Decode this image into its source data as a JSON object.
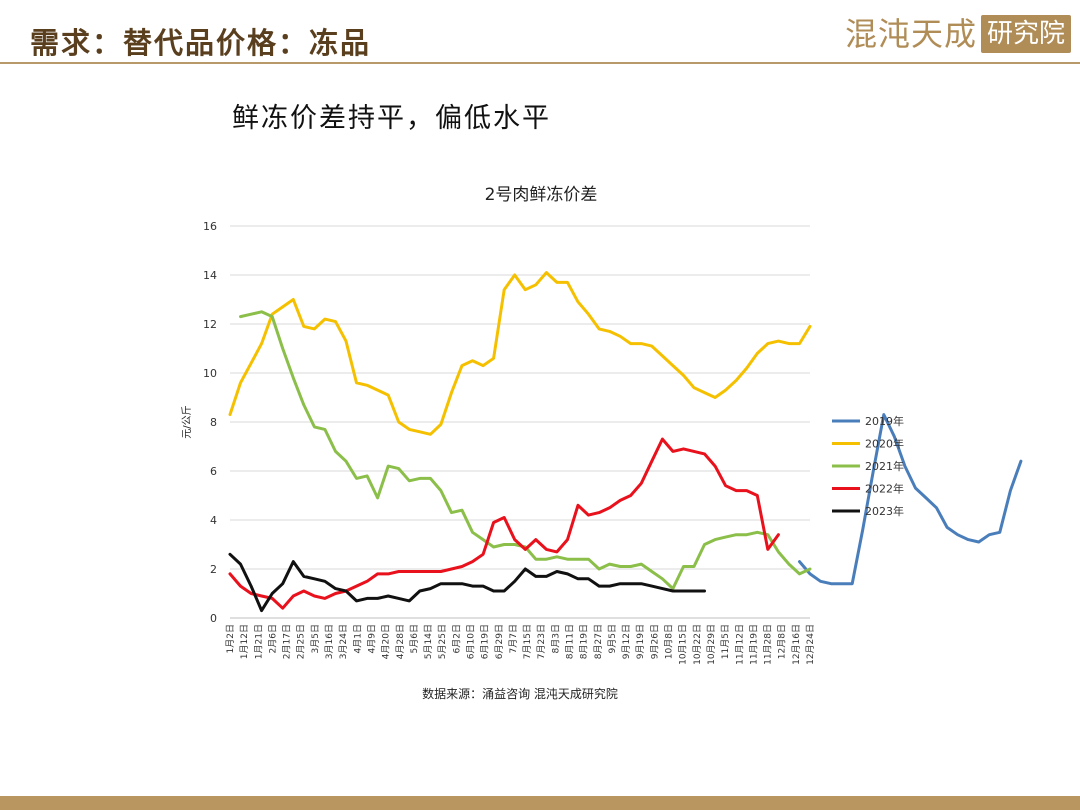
{
  "header": {
    "title": "需求：替代品价格：冻品",
    "logo_text": "混沌天成",
    "logo_box_text": "研究院"
  },
  "subtitle": "鲜冻价差持平，偏低水平",
  "colors": {
    "title": "#5a3f1e",
    "rule": "#b89a6a",
    "footer": "#b9955f",
    "s2019": "#4a7ebb",
    "s2020": "#f5c000",
    "s2021": "#8bbf4a",
    "s2022": "#e8111c",
    "s2023": "#111111"
  },
  "chart_data": {
    "type": "line",
    "title": "2号肉鲜冻价差",
    "ylabel": "元/公斤",
    "source": "数据来源：涌益咨询 混沌天成研究院",
    "ylim": [
      0,
      16
    ],
    "yticks": [
      0,
      2,
      4,
      6,
      8,
      10,
      12,
      14,
      16
    ],
    "grid": true,
    "legend_position": "right",
    "x_tick_labels": [
      "1月2日",
      "1月12日",
      "1月21日",
      "2月6日",
      "2月17日",
      "2月25日",
      "3月5日",
      "3月16日",
      "3月24日",
      "4月1日",
      "4月9日",
      "4月20日",
      "4月28日",
      "5月6日",
      "5月14日",
      "5月25日",
      "6月2日",
      "6月10日",
      "6月19日",
      "6月29日",
      "7月7日",
      "7月15日",
      "7月23日",
      "8月3日",
      "8月11日",
      "8月19日",
      "8月27日",
      "9月5日",
      "9月12日",
      "9月19日",
      "9月26日",
      "10月8日",
      "10月15日",
      "10月22日",
      "10月29日",
      "11月5日",
      "11月12日",
      "11月19日",
      "11月28日",
      "12月8日",
      "12月16日",
      "12月24日"
    ],
    "series": [
      {
        "name": "2019年",
        "color": "#4a7ebb",
        "start": 54,
        "values": [
          2.3,
          1.8,
          1.5,
          1.4,
          1.4,
          1.4,
          3.6,
          6.0,
          8.3,
          7.4,
          6.2,
          5.3,
          4.9,
          4.5,
          3.7,
          3.4,
          3.2,
          3.1,
          3.4,
          3.5,
          5.2,
          6.4
        ]
      },
      {
        "name": "2020年",
        "color": "#f5c000",
        "start": 0,
        "values": [
          8.3,
          9.6,
          10.4,
          11.2,
          12.4,
          12.7,
          13.0,
          11.9,
          11.8,
          12.2,
          12.1,
          11.3,
          9.6,
          9.5,
          9.3,
          9.1,
          8.0,
          7.7,
          7.6,
          7.5,
          7.9,
          9.2,
          10.3,
          10.5,
          10.3,
          10.6,
          13.4,
          14.0,
          13.4,
          13.6,
          14.1,
          13.7,
          13.7,
          12.9,
          12.4,
          11.8,
          11.7,
          11.5,
          11.2,
          11.2,
          11.1,
          10.7,
          10.3,
          9.9,
          9.4,
          9.2,
          9.0,
          9.3,
          9.7,
          10.2,
          10.8,
          11.2,
          11.3,
          11.2,
          11.2,
          11.9
        ]
      },
      {
        "name": "2021年",
        "color": "#8bbf4a",
        "start": 1,
        "values": [
          12.3,
          12.4,
          12.5,
          12.3,
          11.0,
          9.8,
          8.7,
          7.8,
          7.7,
          6.8,
          6.4,
          5.7,
          5.8,
          4.9,
          6.2,
          6.1,
          5.6,
          5.7,
          5.7,
          5.2,
          4.3,
          4.4,
          3.5,
          3.2,
          2.9,
          3.0,
          3.0,
          2.9,
          2.4,
          2.4,
          2.5,
          2.4,
          2.4,
          2.4,
          2.0,
          2.2,
          2.1,
          2.1,
          2.2,
          1.9,
          1.6,
          1.2,
          2.1,
          2.1,
          3.0,
          3.2,
          3.3,
          3.4,
          3.4,
          3.5,
          3.4,
          2.7,
          2.2,
          1.8,
          2.0
        ]
      },
      {
        "name": "2022年",
        "color": "#e8111c",
        "start": 0,
        "values": [
          1.8,
          1.3,
          1.0,
          0.9,
          0.8,
          0.4,
          0.9,
          1.1,
          0.9,
          0.8,
          1.0,
          1.1,
          1.3,
          1.5,
          1.8,
          1.8,
          1.9,
          1.9,
          1.9,
          1.9,
          1.9,
          2.0,
          2.1,
          2.3,
          2.6,
          3.9,
          4.1,
          3.2,
          2.8,
          3.2,
          2.8,
          2.7,
          3.2,
          4.6,
          4.2,
          4.3,
          4.5,
          4.8,
          5.0,
          5.5,
          6.4,
          7.3,
          6.8,
          6.9,
          6.8,
          6.7,
          6.2,
          5.4,
          5.2,
          5.2,
          5.0,
          2.8,
          3.4
        ]
      },
      {
        "name": "2023年",
        "color": "#111111",
        "start": 0,
        "values": [
          2.6,
          2.2,
          1.3,
          0.3,
          1.0,
          1.4,
          2.3,
          1.7,
          1.6,
          1.5,
          1.2,
          1.1,
          0.7,
          0.8,
          0.8,
          0.9,
          0.8,
          0.7,
          1.1,
          1.2,
          1.4,
          1.4,
          1.4,
          1.3,
          1.3,
          1.1,
          1.1,
          1.5,
          2.0,
          1.7,
          1.7,
          1.9,
          1.8,
          1.6,
          1.6,
          1.3,
          1.3,
          1.4,
          1.4,
          1.4,
          1.3,
          1.2,
          1.1,
          1.1,
          1.1,
          1.1
        ]
      }
    ]
  }
}
